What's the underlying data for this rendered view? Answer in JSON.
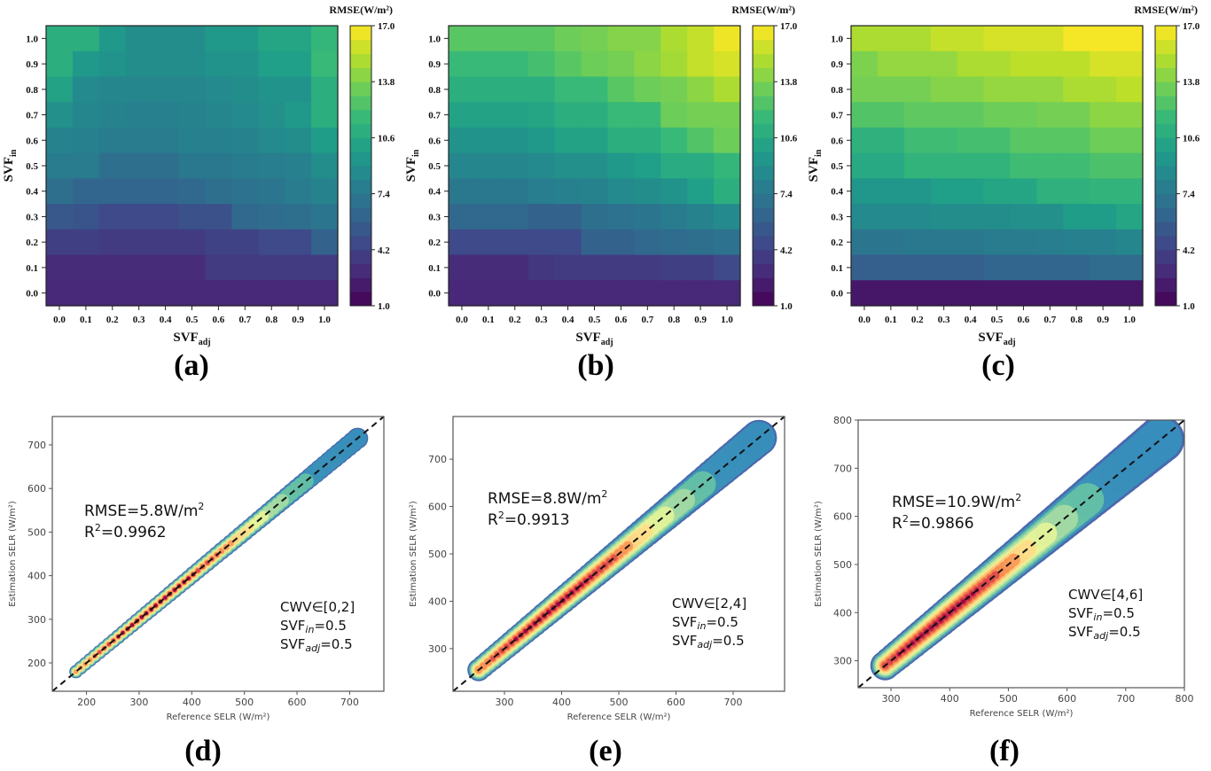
{
  "figure": {
    "panel_labels": [
      "(a)",
      "(b)",
      "(c)",
      "(d)",
      "(e)",
      "(f)"
    ]
  },
  "chart_data": [
    {
      "type": "heatmap",
      "panel": "(a)",
      "title": "",
      "xlabel": "SVF",
      "xlabel_sub": "adj",
      "ylabel": "SVF",
      "ylabel_sub": "in",
      "x": [
        "0.0",
        "0.1",
        "0.2",
        "0.3",
        "0.4",
        "0.5",
        "0.6",
        "0.7",
        "0.8",
        "0.9",
        "1.0"
      ],
      "y": [
        "1.0",
        "0.9",
        "0.8",
        "0.7",
        "0.6",
        "0.5",
        "0.4",
        "0.3",
        "0.2",
        "0.1",
        "0.0"
      ],
      "values": [
        [
          11.0,
          11.0,
          9.6,
          8.8,
          8.8,
          8.8,
          9.6,
          9.6,
          10.4,
          10.4,
          11.6
        ],
        [
          11.0,
          9.6,
          9.2,
          8.8,
          8.8,
          8.8,
          9.2,
          9.2,
          10.0,
          10.0,
          11.8
        ],
        [
          10.2,
          8.6,
          8.4,
          8.4,
          8.4,
          8.4,
          8.6,
          8.8,
          9.2,
          9.2,
          11.0
        ],
        [
          9.0,
          8.4,
          8.2,
          8.0,
          8.0,
          8.2,
          8.4,
          8.6,
          9.0,
          9.6,
          11.0
        ],
        [
          8.2,
          8.0,
          7.6,
          7.6,
          7.6,
          8.0,
          8.0,
          8.2,
          8.6,
          8.8,
          9.8
        ],
        [
          7.6,
          7.6,
          6.8,
          6.8,
          6.8,
          7.4,
          7.4,
          7.6,
          7.8,
          8.0,
          8.8
        ],
        [
          6.8,
          6.2,
          6.2,
          6.2,
          6.2,
          6.4,
          6.8,
          7.0,
          7.2,
          7.6,
          8.2
        ],
        [
          5.4,
          5.2,
          4.6,
          4.6,
          4.6,
          5.0,
          5.0,
          6.4,
          6.6,
          6.8,
          7.2
        ],
        [
          4.0,
          4.0,
          3.8,
          3.8,
          3.8,
          3.8,
          4.2,
          4.2,
          4.6,
          4.6,
          6.0
        ],
        [
          3.0,
          3.0,
          3.0,
          3.0,
          3.0,
          3.0,
          3.8,
          3.8,
          3.8,
          3.8,
          3.8
        ],
        [
          2.8,
          2.8,
          2.8,
          2.8,
          2.8,
          2.8,
          2.8,
          2.8,
          2.8,
          2.8,
          2.8
        ]
      ],
      "colorbar": {
        "label": "RMSE(W/m²)",
        "range": [
          1.0,
          17.0
        ],
        "ticks": [
          "17.0",
          "13.8",
          "10.6",
          "7.4",
          "4.2",
          "1.0"
        ],
        "colormap": "viridis"
      }
    },
    {
      "type": "heatmap",
      "panel": "(b)",
      "title": "",
      "xlabel": "SVF",
      "xlabel_sub": "adj",
      "ylabel": "SVF",
      "ylabel_sub": "in",
      "x": [
        "0.0",
        "0.1",
        "0.2",
        "0.3",
        "0.4",
        "0.5",
        "0.6",
        "0.7",
        "0.8",
        "0.9",
        "1.0"
      ],
      "y": [
        "1.0",
        "0.9",
        "0.8",
        "0.7",
        "0.6",
        "0.5",
        "0.4",
        "0.3",
        "0.2",
        "0.1",
        "0.0"
      ],
      "values": [
        [
          12.8,
          12.8,
          12.8,
          12.8,
          13.4,
          13.6,
          14.0,
          14.0,
          15.0,
          15.6,
          16.6
        ],
        [
          11.8,
          11.8,
          11.8,
          12.2,
          12.8,
          13.4,
          13.6,
          14.2,
          14.8,
          15.6,
          16.0
        ],
        [
          11.0,
          11.0,
          11.0,
          11.0,
          11.8,
          11.8,
          12.8,
          13.4,
          13.6,
          14.2,
          15.0
        ],
        [
          10.2,
          10.2,
          10.2,
          10.4,
          11.0,
          11.0,
          11.8,
          11.8,
          13.4,
          13.6,
          13.6
        ],
        [
          9.2,
          9.2,
          9.2,
          9.6,
          10.2,
          10.2,
          11.0,
          11.0,
          11.8,
          12.6,
          13.4
        ],
        [
          8.4,
          8.4,
          8.4,
          8.6,
          9.0,
          9.0,
          9.6,
          10.0,
          10.8,
          10.8,
          11.6
        ],
        [
          7.4,
          7.4,
          7.4,
          7.8,
          8.0,
          8.2,
          8.6,
          8.8,
          9.2,
          10.0,
          11.0
        ],
        [
          6.4,
          6.4,
          6.4,
          6.0,
          6.0,
          6.8,
          7.0,
          7.2,
          7.6,
          8.2,
          8.6
        ],
        [
          4.6,
          4.6,
          4.6,
          4.6,
          4.6,
          6.0,
          6.0,
          6.4,
          6.6,
          6.8,
          7.0
        ],
        [
          3.0,
          3.0,
          3.0,
          3.6,
          3.8,
          3.8,
          3.8,
          3.8,
          4.0,
          4.0,
          4.6
        ],
        [
          2.8,
          2.8,
          2.8,
          2.8,
          2.8,
          2.8,
          2.8,
          2.8,
          2.8,
          2.8,
          2.8
        ]
      ],
      "colorbar": {
        "label": "RMSE(W/m²)",
        "range": [
          1.0,
          17.0
        ],
        "ticks": [
          "17.0",
          "13.8",
          "10.6",
          "7.4",
          "4.2",
          "1.0"
        ],
        "colormap": "viridis"
      }
    },
    {
      "type": "heatmap",
      "panel": "(c)",
      "title": "",
      "xlabel": "SVF",
      "xlabel_sub": "adj",
      "ylabel": "SVF",
      "ylabel_sub": "in",
      "x": [
        "0.0",
        "0.1",
        "0.2",
        "0.3",
        "0.4",
        "0.5",
        "0.6",
        "0.7",
        "0.8",
        "0.9",
        "1.0"
      ],
      "y": [
        "1.0",
        "0.9",
        "0.8",
        "0.7",
        "0.6",
        "0.5",
        "0.4",
        "0.3",
        "0.2",
        "0.1",
        "0.0"
      ],
      "values": [
        [
          15.0,
          15.0,
          15.0,
          15.6,
          15.6,
          16.0,
          16.0,
          16.0,
          16.8,
          16.8,
          16.8
        ],
        [
          13.8,
          14.4,
          14.4,
          14.4,
          15.0,
          15.0,
          15.4,
          15.4,
          15.4,
          16.0,
          16.0
        ],
        [
          13.6,
          13.6,
          13.6,
          14.0,
          14.0,
          14.4,
          14.4,
          14.4,
          15.0,
          15.0,
          15.4
        ],
        [
          12.6,
          12.6,
          13.0,
          13.0,
          13.0,
          13.4,
          13.4,
          13.6,
          13.6,
          14.2,
          14.2
        ],
        [
          11.2,
          11.2,
          12.0,
          12.0,
          12.2,
          12.2,
          12.8,
          12.8,
          12.8,
          13.4,
          13.4
        ],
        [
          10.6,
          10.6,
          11.4,
          11.4,
          11.4,
          11.4,
          12.0,
          12.0,
          12.0,
          12.4,
          12.4
        ],
        [
          9.4,
          9.4,
          9.4,
          10.0,
          10.0,
          10.4,
          10.4,
          11.2,
          11.2,
          11.4,
          11.4
        ],
        [
          8.6,
          8.6,
          8.6,
          8.8,
          8.8,
          8.8,
          9.0,
          9.0,
          9.8,
          9.8,
          10.4
        ],
        [
          7.2,
          7.2,
          7.4,
          7.4,
          7.4,
          7.6,
          7.6,
          7.8,
          8.0,
          8.0,
          8.4
        ],
        [
          5.8,
          5.8,
          5.8,
          5.8,
          5.8,
          6.2,
          6.2,
          6.2,
          6.2,
          6.6,
          6.6
        ],
        [
          2.0,
          2.0,
          2.0,
          2.0,
          2.0,
          2.0,
          2.0,
          2.0,
          2.0,
          2.0,
          2.0
        ]
      ],
      "colorbar": {
        "label": "RMSE(W/m²)",
        "range": [
          1.0,
          17.0
        ],
        "ticks": [
          "17.0",
          "13.8",
          "10.6",
          "7.4",
          "4.2",
          "1.0"
        ],
        "colormap": "viridis"
      }
    },
    {
      "type": "scatter",
      "panel": "(d)",
      "title": "",
      "xlabel": "Reference SELR (W/m²)",
      "ylabel": "Estimation SELR (W/m²)",
      "xlim": [
        135,
        765
      ],
      "ylim": [
        135,
        765
      ],
      "xticks": [
        200,
        300,
        400,
        500,
        600,
        700
      ],
      "yticks": [
        200,
        300,
        400,
        500,
        600,
        700
      ],
      "data_range": [
        180,
        715
      ],
      "density_peak": 330,
      "spread": 14,
      "reference_line": "1:1 dashed",
      "annotations": {
        "rmse": "RMSE=5.8W/m",
        "rmse_sup": "2",
        "r2_prefix": "R",
        "r2_sup": "2",
        "r2": "=0.9962",
        "cwv": "CWV∈[0,2]",
        "svf_in_label": "SVF",
        "svf_in_sub": "in",
        "svf_in_val": "=0.5",
        "svf_adj_label": "SVF",
        "svf_adj_sub": "adj",
        "svf_adj_val": "=0.5"
      }
    },
    {
      "type": "scatter",
      "panel": "(e)",
      "title": "",
      "xlabel": "Reference SELR (W/m²)",
      "ylabel": "Estimation SELR (W/m²)",
      "xlim": [
        210,
        790
      ],
      "ylim": [
        210,
        790
      ],
      "xticks": [
        300,
        400,
        500,
        600,
        700
      ],
      "yticks": [
        300,
        400,
        500,
        600,
        700
      ],
      "data_range": [
        255,
        745
      ],
      "density_peak": 385,
      "spread": 22,
      "reference_line": "1:1 dashed",
      "annotations": {
        "rmse": "RMSE=8.8W/m",
        "rmse_sup": "2",
        "r2_prefix": "R",
        "r2_sup": "2",
        "r2": "=0.9913",
        "cwv": "CWV∈[2,4]",
        "svf_in_label": "SVF",
        "svf_in_sub": "in",
        "svf_in_val": "=0.5",
        "svf_adj_label": "SVF",
        "svf_adj_sub": "adj",
        "svf_adj_val": "=0.5"
      }
    },
    {
      "type": "scatter",
      "panel": "(f)",
      "title": "",
      "xlabel": "Reference SELR (W/m²)",
      "ylabel": "Estimation SELR (W/m²)",
      "xlim": [
        244,
        800
      ],
      "ylim": [
        244,
        800
      ],
      "xticks": [
        300,
        400,
        500,
        600,
        700,
        800
      ],
      "yticks": [
        300,
        400,
        500,
        600,
        700,
        800
      ],
      "data_range": [
        290,
        760
      ],
      "density_peak": 380,
      "spread": 28,
      "reference_line": "1:1 dashed",
      "annotations": {
        "rmse": "RMSE=10.9W/m",
        "rmse_sup": "2",
        "r2_prefix": "R",
        "r2_sup": "2",
        "r2": "=0.9866",
        "cwv": "CWV∈[4,6]",
        "svf_in_label": "SVF",
        "svf_in_sub": "in",
        "svf_in_val": "=0.5",
        "svf_adj_label": "SVF",
        "svf_adj_sub": "adj",
        "svf_adj_val": "=0.5"
      }
    }
  ]
}
